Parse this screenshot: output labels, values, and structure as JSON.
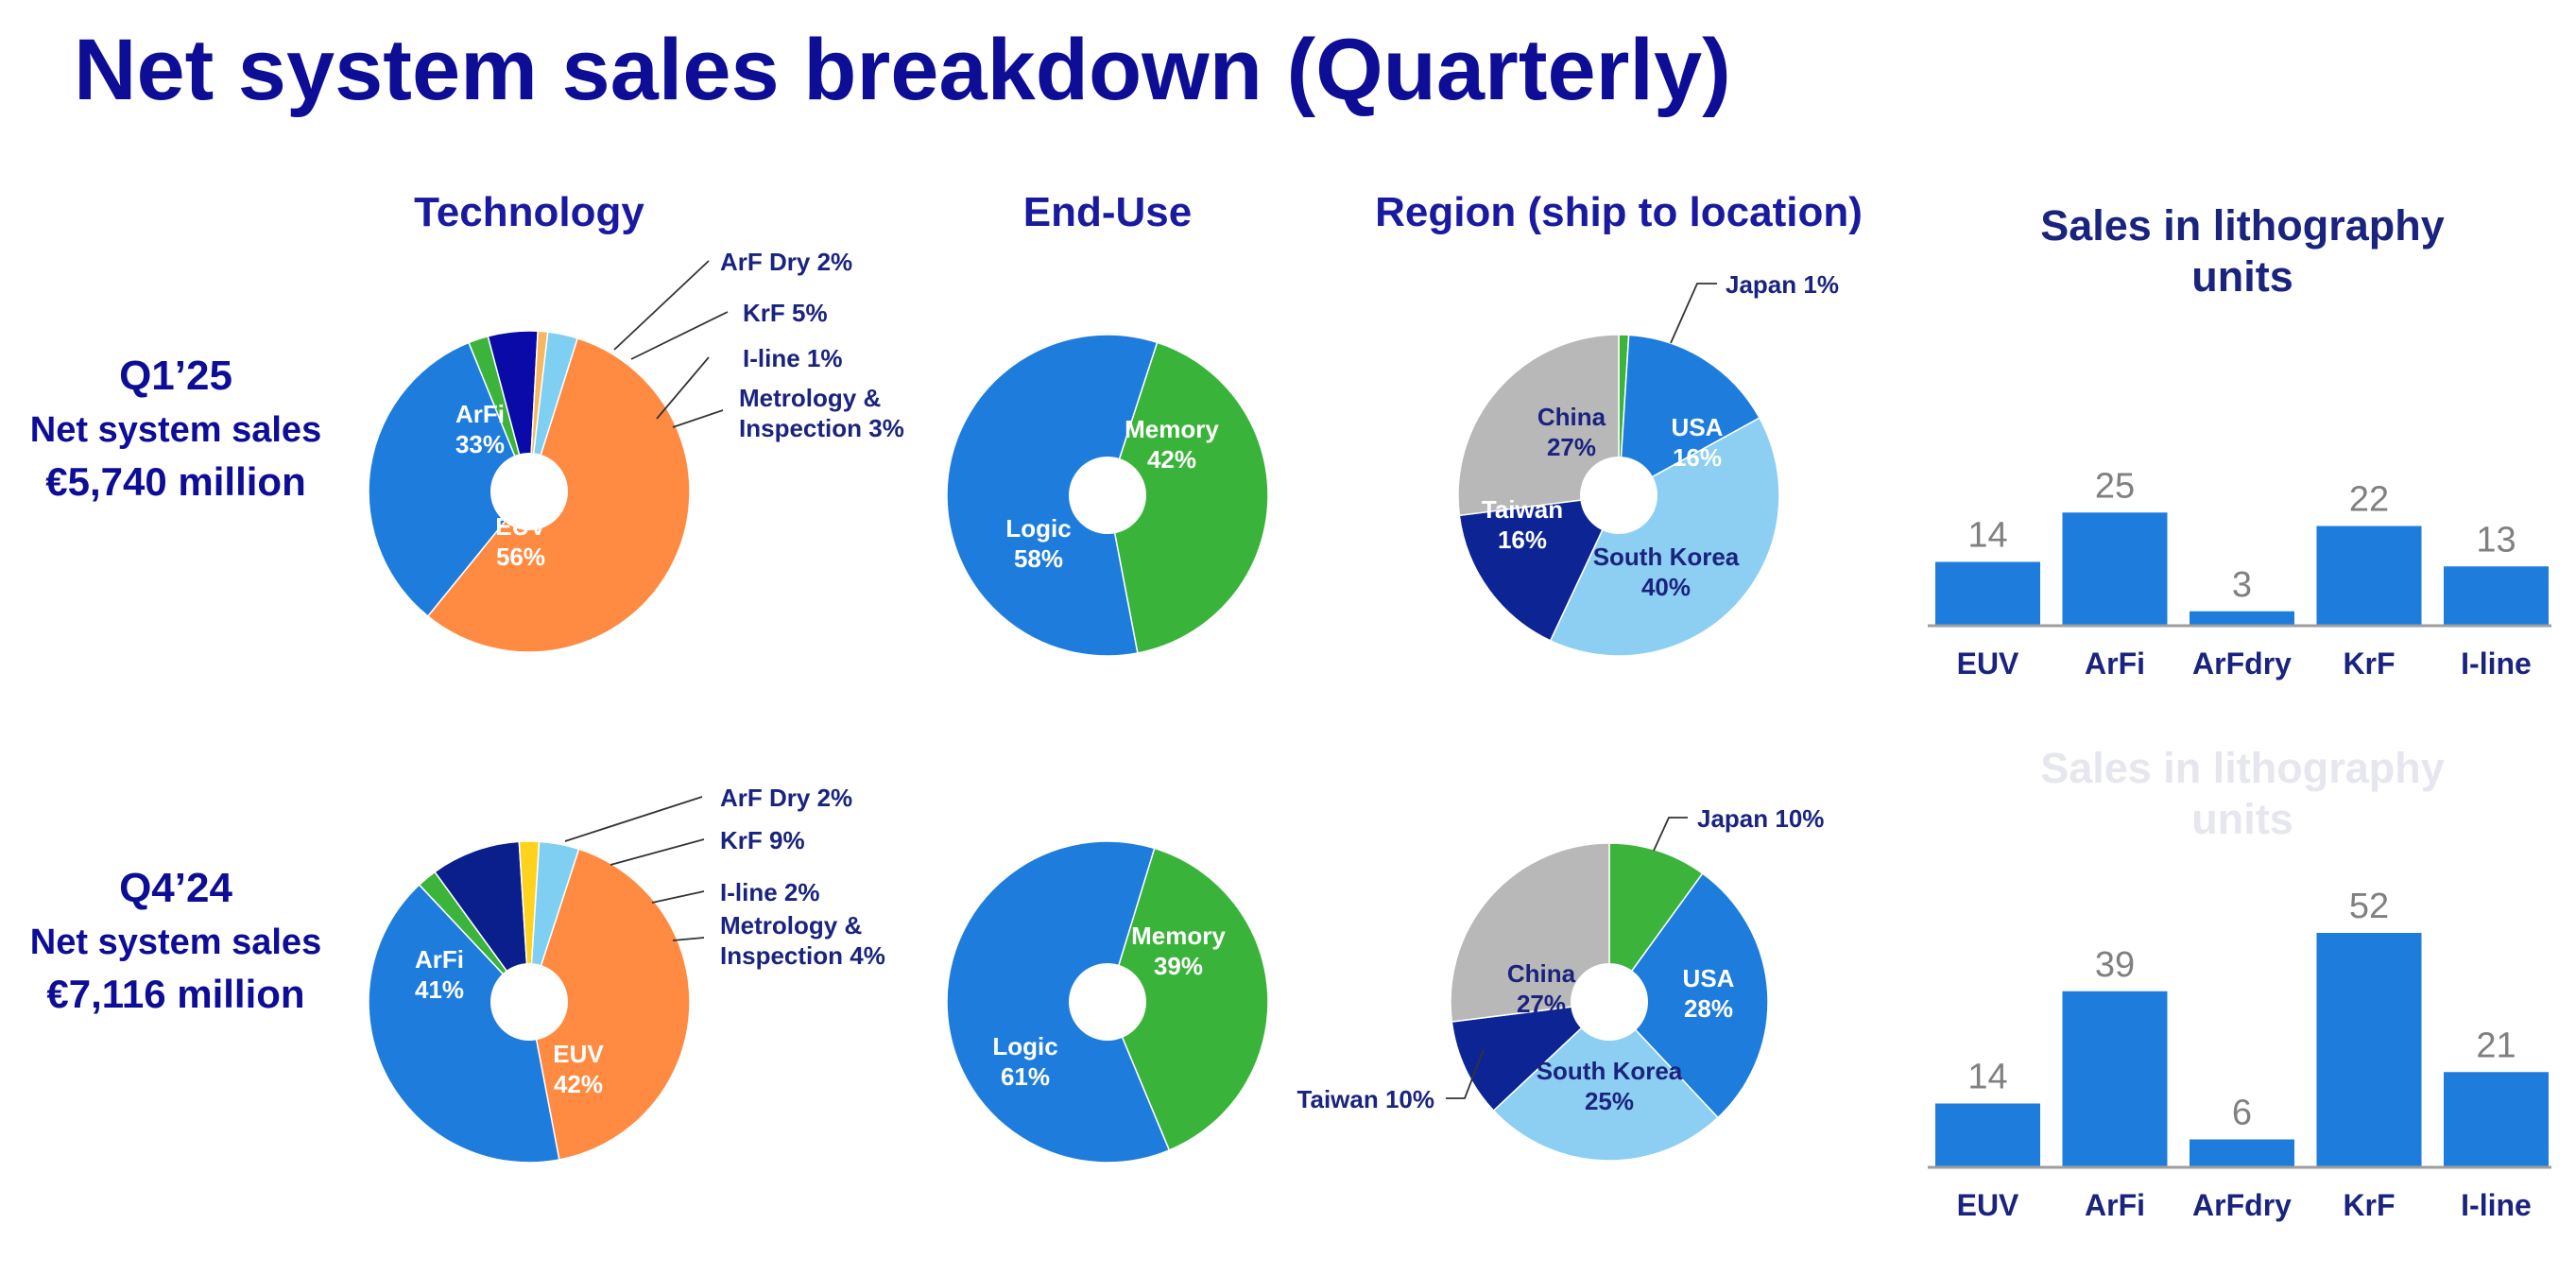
{
  "title": "Net system sales breakdown (Quarterly)",
  "headers": {
    "technology": "Technology",
    "end_use": "End-Use",
    "region": "Region (ship to location)",
    "litho_line1": "Sales in lithography",
    "litho_line2": "units"
  },
  "quarters": [
    {
      "label": "Q1’25",
      "subtitle": "Net system sales",
      "value": "€5,740 million"
    },
    {
      "label": "Q4’24",
      "subtitle": "Net system sales",
      "value": "€7,116 million"
    }
  ],
  "colors": {
    "euv": "#ff8a42",
    "arfi": "#1e7ddc",
    "arfdry": "#3cb43c",
    "krf_q1": "#0a0aa8",
    "krf_q4": "#0a1f8c",
    "iline_q1": "#f5b860",
    "iline_q4": "#ffd21e",
    "metrology": "#7ecff2",
    "logic": "#1e7ddc",
    "memory": "#3ab33a",
    "usa": "#1e7ddc",
    "south_korea": "#8ccff2",
    "taiwan": "#0d2494",
    "china": "#b8b8b8",
    "japan": "#3cb43c",
    "bar": "#1e7ddc",
    "title": "#0d0d96"
  },
  "chart_data": [
    {
      "type": "pie",
      "quarter": "Q1’25",
      "group": "Technology",
      "slices": [
        {
          "name": "EUV",
          "value": 56,
          "display": "56%"
        },
        {
          "name": "ArFi",
          "value": 33,
          "display": "33%"
        },
        {
          "name": "ArF Dry",
          "value": 2,
          "display": "ArF Dry 2%"
        },
        {
          "name": "KrF",
          "value": 5,
          "display": "KrF 5%"
        },
        {
          "name": "I-line",
          "value": 1,
          "display": "I-line 1%"
        },
        {
          "name": "Metrology & Inspection",
          "value": 3,
          "display_line1": "Metrology &",
          "display_line2": "Inspection 3%"
        }
      ]
    },
    {
      "type": "pie",
      "quarter": "Q1’25",
      "group": "End-Use",
      "slices": [
        {
          "name": "Memory",
          "value": 42,
          "display": "42%"
        },
        {
          "name": "Logic",
          "value": 58,
          "display": "58%"
        }
      ]
    },
    {
      "type": "pie",
      "quarter": "Q1’25",
      "group": "Region (ship to location)",
      "slices": [
        {
          "name": "Japan",
          "value": 1,
          "display": "Japan 1%"
        },
        {
          "name": "USA",
          "value": 16,
          "display": "16%"
        },
        {
          "name": "South Korea",
          "value": 40,
          "display": "40%"
        },
        {
          "name": "Taiwan",
          "value": 16,
          "display": "16%"
        },
        {
          "name": "China",
          "value": 27,
          "display": "27%"
        }
      ]
    },
    {
      "type": "bar",
      "quarter": "Q1’25",
      "title": "Sales in lithography units",
      "categories": [
        "EUV",
        "ArFi",
        "ArFdry",
        "KrF",
        "I-line"
      ],
      "values": [
        14,
        25,
        3,
        22,
        13
      ]
    },
    {
      "type": "pie",
      "quarter": "Q4’24",
      "group": "Technology",
      "slices": [
        {
          "name": "EUV",
          "value": 42,
          "display": "42%"
        },
        {
          "name": "ArFi",
          "value": 41,
          "display": "41%"
        },
        {
          "name": "ArF Dry",
          "value": 2,
          "display": "ArF Dry 2%"
        },
        {
          "name": "KrF",
          "value": 9,
          "display": "KrF 9%"
        },
        {
          "name": "I-line",
          "value": 2,
          "display": "I-line 2%"
        },
        {
          "name": "Metrology & Inspection",
          "value": 4,
          "display_line1": "Metrology &",
          "display_line2": "Inspection 4%"
        }
      ]
    },
    {
      "type": "pie",
      "quarter": "Q4’24",
      "group": "End-Use",
      "slices": [
        {
          "name": "Memory",
          "value": 39,
          "display": "39%"
        },
        {
          "name": "Logic",
          "value": 61,
          "display": "61%"
        }
      ]
    },
    {
      "type": "pie",
      "quarter": "Q4’24",
      "group": "Region (ship to location)",
      "slices": [
        {
          "name": "Japan",
          "value": 10,
          "display": "Japan 10%"
        },
        {
          "name": "USA",
          "value": 28,
          "display": "28%"
        },
        {
          "name": "South Korea",
          "value": 25,
          "display": "25%"
        },
        {
          "name": "Taiwan",
          "value": 10,
          "display": "Taiwan 10%"
        },
        {
          "name": "China",
          "value": 27,
          "display": "27%"
        }
      ]
    },
    {
      "type": "bar",
      "quarter": "Q4’24",
      "title": "Sales in lithography units",
      "categories": [
        "EUV",
        "ArFi",
        "ArFdry",
        "KrF",
        "I-line"
      ],
      "values": [
        14,
        39,
        6,
        52,
        21
      ]
    }
  ]
}
